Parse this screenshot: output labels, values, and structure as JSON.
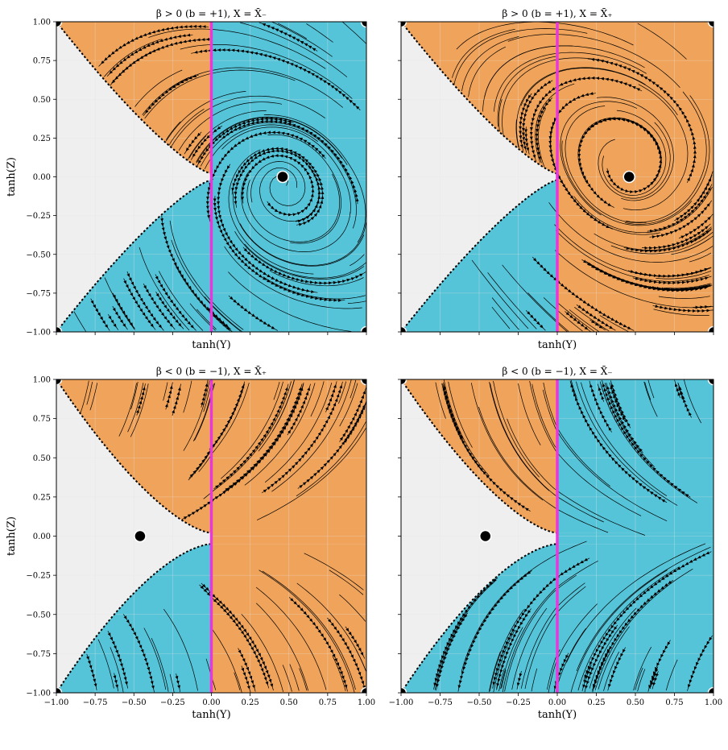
{
  "colors": {
    "orange": "#f0a35a",
    "cyan": "#56c4d8",
    "grey": "#efefef",
    "magenta": "#e838dc",
    "line": "#000000",
    "grid": "#e4e4e4"
  },
  "caption": "",
  "chart_data": [
    {
      "type": "streamplot",
      "title": "β > 0 (b = +1),  X = X̄₋",
      "xlabel": "tanh(Y)",
      "ylabel": "tanh(Z)",
      "xlim": [
        -1.0,
        1.0
      ],
      "ylim": [
        -1.0,
        1.0
      ],
      "xticks": [],
      "yticks": [
        "1.00",
        "0.75",
        "0.50",
        "0.25",
        "0.00",
        "−0.25",
        "−0.50",
        "−0.75",
        "−1.00"
      ],
      "forbidden_region": "hourglass",
      "separatrix_x": 0.0,
      "fixed_points": [
        {
          "x": 0.46,
          "y": 0.0
        }
      ],
      "corner_points": [
        {
          "x": -1,
          "y": 1
        },
        {
          "x": 1,
          "y": 1
        },
        {
          "x": -1,
          "y": -1
        },
        {
          "x": 1,
          "y": -1
        }
      ],
      "regions": {
        "upper_left": "orange",
        "upper_right": "cyan",
        "lower": "cyan"
      },
      "flow": "spiral"
    },
    {
      "type": "streamplot",
      "title": "β > 0 (b = +1),  X = X̄₊",
      "xlabel": "tanh(Y)",
      "ylabel": "",
      "xlim": [
        -1.0,
        1.0
      ],
      "ylim": [
        -1.0,
        1.0
      ],
      "xticks": [],
      "yticks": [],
      "forbidden_region": "hourglass",
      "separatrix_x": 0.0,
      "fixed_points": [
        {
          "x": 0.46,
          "y": 0.0
        }
      ],
      "corner_points": [
        {
          "x": -1,
          "y": 1
        },
        {
          "x": 1,
          "y": 1
        },
        {
          "x": -1,
          "y": -1
        },
        {
          "x": 1,
          "y": -1
        }
      ],
      "regions": {
        "upper": "orange",
        "lower_left": "cyan",
        "lower_right": "orange"
      },
      "flow": "spiral"
    },
    {
      "type": "streamplot",
      "title": "β < 0 (b = −1),  X = X̄₊",
      "xlabel": "tanh(Y)",
      "ylabel": "tanh(Z)",
      "xlim": [
        -1.0,
        1.0
      ],
      "ylim": [
        -1.0,
        1.0
      ],
      "xticks": [
        "−1.00",
        "−0.75",
        "−0.50",
        "−0.25",
        "0.00",
        "0.25",
        "0.50",
        "0.75",
        "1.00"
      ],
      "yticks": [
        "1.00",
        "0.75",
        "0.50",
        "0.25",
        "0.00",
        "−0.25",
        "−0.50",
        "−0.75",
        "−1.00"
      ],
      "forbidden_region": "bottleneck",
      "separatrix_x": 0.0,
      "fixed_points": [
        {
          "x": -0.46,
          "y": 0.0
        }
      ],
      "corner_points": [
        {
          "x": -1,
          "y": 1
        },
        {
          "x": 1,
          "y": 1
        },
        {
          "x": -1,
          "y": -1
        },
        {
          "x": 1,
          "y": -1
        }
      ],
      "regions": {
        "upper": "orange",
        "lower_left": "cyan",
        "lower_right": "orange"
      },
      "flow": "fan"
    },
    {
      "type": "streamplot",
      "title": "β < 0 (b = −1),  X = X̄₋",
      "xlabel": "tanh(Y)",
      "ylabel": "",
      "xlim": [
        -1.0,
        1.0
      ],
      "ylim": [
        -1.0,
        1.0
      ],
      "xticks": [
        "−1.00",
        "−0.75",
        "−0.50",
        "−0.25",
        "0.00",
        "0.25",
        "0.50",
        "0.75",
        "1.00"
      ],
      "yticks": [],
      "forbidden_region": "bottleneck",
      "separatrix_x": 0.0,
      "fixed_points": [
        {
          "x": -0.46,
          "y": 0.0
        }
      ],
      "corner_points": [
        {
          "x": -1,
          "y": 1
        },
        {
          "x": 1,
          "y": 1
        },
        {
          "x": -1,
          "y": -1
        },
        {
          "x": 1,
          "y": -1
        }
      ],
      "regions": {
        "upper_left": "orange",
        "upper_right": "cyan",
        "lower": "cyan"
      },
      "flow": "fan"
    }
  ]
}
